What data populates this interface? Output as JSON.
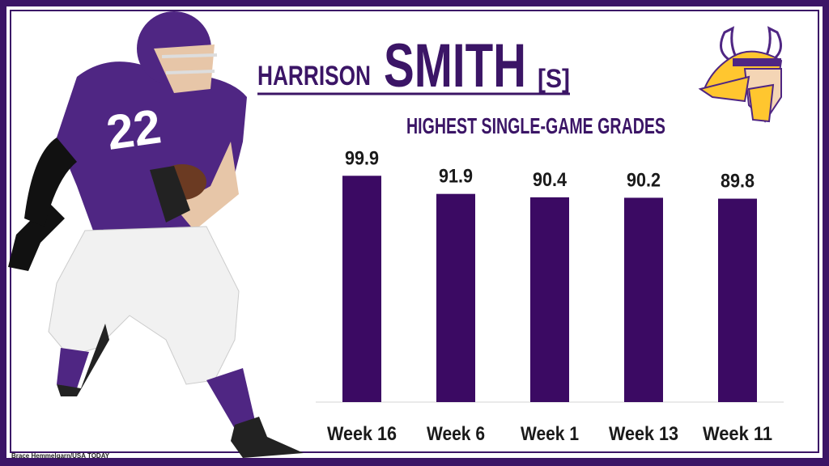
{
  "chart_data": {
    "type": "bar",
    "title": {
      "first": "HARRISON",
      "last": "SMITH",
      "position": "[S]"
    },
    "subtitle": "HIGHEST SINGLE-GAME GRADES",
    "credit": "Brace Hemmelgarn/USA TODAY",
    "categories": [
      "Week 16",
      "Week 6",
      "Week 1",
      "Week 13",
      "Week 11"
    ],
    "values": [
      99.9,
      91.9,
      90.4,
      90.2,
      89.8
    ],
    "color": "#3b0a63",
    "ylim": [
      0,
      100
    ]
  }
}
